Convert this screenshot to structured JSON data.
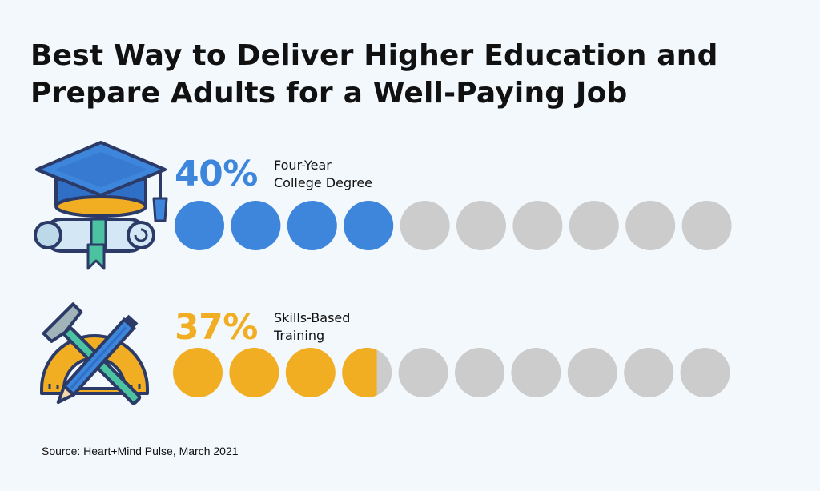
{
  "title": {
    "line1": "Best Way to Deliver Higher Education and",
    "line2": "Prepare Adults for a Well-Paying Job"
  },
  "colors": {
    "degree": "#3d86dc",
    "skills": "#f2ae22",
    "empty": "#cccccc",
    "background": "#f3f8fc"
  },
  "chart_data": {
    "type": "bar",
    "title": "Best Way to Deliver Higher Education and Prepare Adults for a Well-Paying Job",
    "unit": "%",
    "dot_count": 10,
    "dot_value": 10,
    "categories": [
      "Four-Year College Degree",
      "Skills-Based Training"
    ],
    "values": [
      40,
      37
    ],
    "series": [
      {
        "id": "degree",
        "percent_label": "40%",
        "label_line1": "Four-Year",
        "label_line2": "College Degree",
        "value": 40,
        "icon": "graduation-cap-diploma-icon",
        "color": "#3d86dc"
      },
      {
        "id": "skills",
        "percent_label": "37%",
        "label_line1": "Skills-Based",
        "label_line2": "Training",
        "value": 37,
        "icon": "tools-pencil-hammer-protractor-icon",
        "color": "#f2ae22"
      }
    ]
  },
  "source": "Source: Heart+Mind Pulse, March 2021"
}
